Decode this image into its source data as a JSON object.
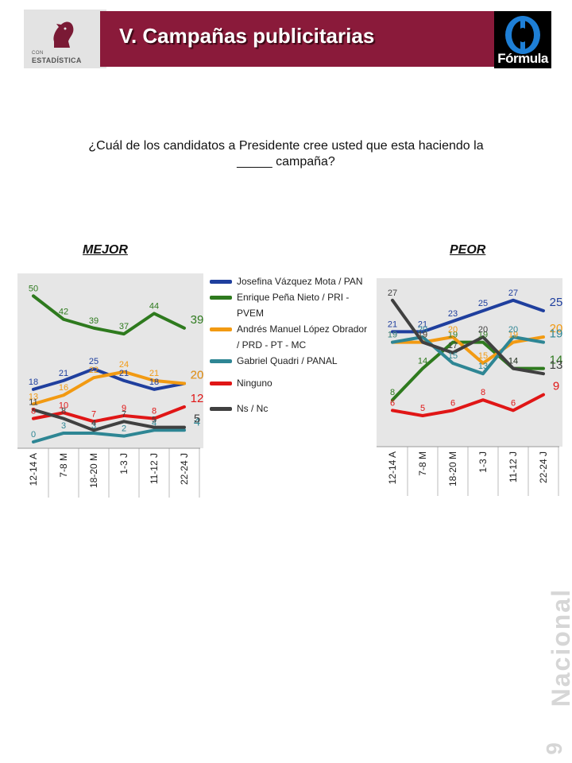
{
  "header": {
    "logo_small": "CON",
    "logo_name": "ESTADÍSTICA",
    "title": "V. Campañas publicitarias",
    "brand": "Fórmula"
  },
  "question": "¿Cuál de los candidatos a Presidente cree usted que esta haciendo la _____ campaña?",
  "side_label": "Nacional",
  "page_number": "9",
  "legend": [
    {
      "label": "Josefina Vázquez Mota / PAN",
      "color": "#1f3f9e"
    },
    {
      "label": "Enrique Peña Nieto / PRI - PVEM",
      "color": "#2e7a1e"
    },
    {
      "label": "Andrés Manuel López Obrador / PRD - PT - MC",
      "color": "#f29a12"
    },
    {
      "label": "Gabriel Quadri / PANAL",
      "color": "#2e8694"
    },
    {
      "label": "Ninguno",
      "color": "#e01616"
    },
    {
      "label": "Ns / Nc",
      "color": "#404040"
    }
  ],
  "chart_data": [
    {
      "type": "line",
      "title": "MEJOR",
      "categories": [
        "12-14 A",
        "7-8 M",
        "18-20 M",
        "1-3 J",
        "11-12 J",
        "22-24 J"
      ],
      "ylim": [
        0,
        55
      ],
      "series": [
        {
          "name": "Josefina Vázquez Mota / PAN",
          "values": [
            18,
            21,
            25,
            21,
            18,
            20
          ],
          "color": "#1f3f9e"
        },
        {
          "name": "Enrique Peña Nieto / PRI - PVEM",
          "values": [
            50,
            42,
            39,
            37,
            44,
            39
          ],
          "color": "#2e7a1e"
        },
        {
          "name": "Andrés Manuel López Obrador / PRD - PT - MC",
          "values": [
            13,
            16,
            22,
            24,
            21,
            20
          ],
          "color": "#f29a12"
        },
        {
          "name": "Gabriel Quadri / PANAL",
          "values": [
            0,
            3,
            3,
            2,
            4,
            4
          ],
          "color": "#2e8694"
        },
        {
          "name": "Ninguno",
          "values": [
            8,
            10,
            7,
            9,
            8,
            12
          ],
          "color": "#e01616"
        },
        {
          "name": "Ns / Nc",
          "values": [
            11,
            8,
            4,
            7,
            5,
            5
          ],
          "color": "#404040"
        }
      ]
    },
    {
      "type": "line",
      "title": "PEOR",
      "categories": [
        "12-14 A",
        "7-8 M",
        "18-20 M",
        "1-3 J",
        "11-12 J",
        "22-24 J"
      ],
      "ylim": [
        0,
        30
      ],
      "series": [
        {
          "name": "Josefina Vázquez Mota / PAN",
          "values": [
            21,
            21,
            23,
            25,
            27,
            25
          ],
          "color": "#1f3f9e"
        },
        {
          "name": "Enrique Peña Nieto / PRI - PVEM",
          "values": [
            8,
            14,
            19,
            19,
            14,
            14
          ],
          "color": "#2e7a1e"
        },
        {
          "name": "Andrés Manuel López Obrador / PRD - PT - MC",
          "values": [
            19,
            19,
            20,
            15,
            19,
            20
          ],
          "color": "#f29a12"
        },
        {
          "name": "Gabriel Quadri / PANAL",
          "values": [
            19,
            20,
            15,
            13,
            20,
            19
          ],
          "color": "#2e8694"
        },
        {
          "name": "Ninguno",
          "values": [
            6,
            5,
            6,
            8,
            6,
            9
          ],
          "color": "#e01616"
        },
        {
          "name": "Ns / Nc",
          "values": [
            27,
            19,
            17,
            20,
            14,
            13
          ],
          "color": "#404040"
        }
      ]
    }
  ]
}
